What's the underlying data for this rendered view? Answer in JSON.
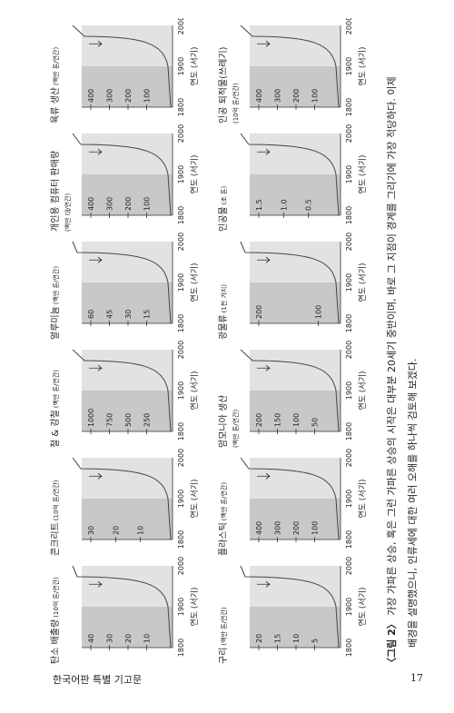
{
  "figure": {
    "panels": [
      {
        "title": "탄소 배출량",
        "unit": "(10억 톤/연간)",
        "yticks": [
          "40",
          "30",
          "20",
          "10"
        ]
      },
      {
        "title": "콘크리트",
        "unit": "(10억 톤/연간)",
        "yticks": [
          "30",
          "20",
          "10"
        ]
      },
      {
        "title": "철 & 강철",
        "unit": "(백만 톤/연간)",
        "yticks": [
          "1000",
          "750",
          "500",
          "250"
        ]
      },
      {
        "title": "알루미늄",
        "unit": "(백만 톤/연간)",
        "yticks": [
          "60",
          "45",
          "30",
          "15"
        ]
      },
      {
        "title": "개인용 컴퓨터 판매량",
        "unit": "(백만 대/연간)",
        "yticks": [
          "400",
          "300",
          "200",
          "100"
        ]
      },
      {
        "title": "육류 생산",
        "unit": "(백만 톤/연간)",
        "yticks": [
          "400",
          "300",
          "200",
          "100"
        ]
      },
      {
        "title": "구리",
        "unit": "(백만 톤/연간)",
        "yticks": [
          "20",
          "15",
          "10",
          "5"
        ]
      },
      {
        "title": "플라스틱",
        "unit": "(백만 톤/연간)",
        "yticks": [
          "400",
          "300",
          "200",
          "100"
        ]
      },
      {
        "title": "암모니아 생산",
        "unit": "(백만 톤/연간)",
        "yticks": [
          "200",
          "150",
          "100",
          "50"
        ]
      },
      {
        "title": "광물류",
        "unit": "(1천 가지)",
        "yticks": [
          "200",
          "100"
        ]
      },
      {
        "title": "인공물",
        "unit": "(조 톤)",
        "yticks": [
          "1.5",
          "1.0",
          "0.5"
        ]
      },
      {
        "title": "인공 퇴적물(쓰레기)",
        "unit": "(10억 톤/연간)",
        "yticks": [
          "400",
          "300",
          "200",
          "100"
        ]
      }
    ],
    "xticks": [
      "1800",
      "1900",
      "2000"
    ],
    "xlabel": "연도 (서기)",
    "caption": {
      "label": "〈그림 2〉",
      "text": "가장 가파른 상승, 혹은 그런 가파른 상승의 시작은 대부분 20세기 중반이며, 바로 그 지점이 경계를 그리기에 가장 적당하다. 이제",
      "text2": "배경을 설명했으니, 인류세에 대한 여러 오해를 하나씩 검토해 보겠다."
    }
  },
  "footer": {
    "left": "한국어판 특별 기고문",
    "page": "17"
  }
}
